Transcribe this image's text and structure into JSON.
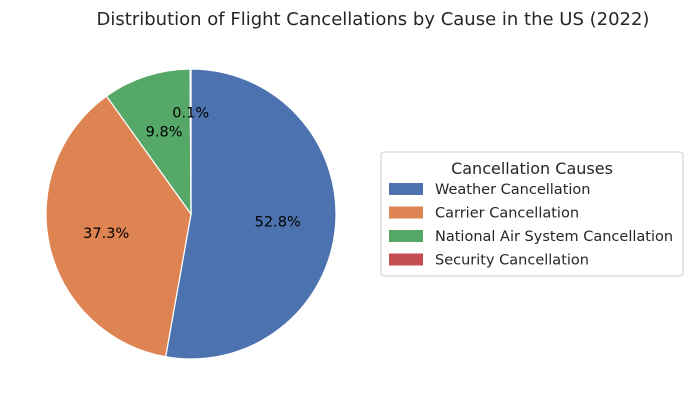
{
  "chart_data": {
    "type": "pie",
    "title": "Distribution of Flight Cancellations by Cause in the US (2022)",
    "legend_title": "Cancellation Causes",
    "legend_placement": "right",
    "slices": [
      {
        "label": "Weather Cancellation",
        "value": 52.8,
        "pct_label": "52.8%",
        "color": "#4c72b0"
      },
      {
        "label": "Carrier Cancellation",
        "value": 37.3,
        "pct_label": "37.3%",
        "color": "#dd8452"
      },
      {
        "label": "National Air System Cancellation",
        "value": 9.8,
        "pct_label": "9.8%",
        "color": "#55a868"
      },
      {
        "label": "Security Cancellation",
        "value": 0.1,
        "pct_label": "0.1%",
        "color": "#c44e52"
      }
    ]
  }
}
